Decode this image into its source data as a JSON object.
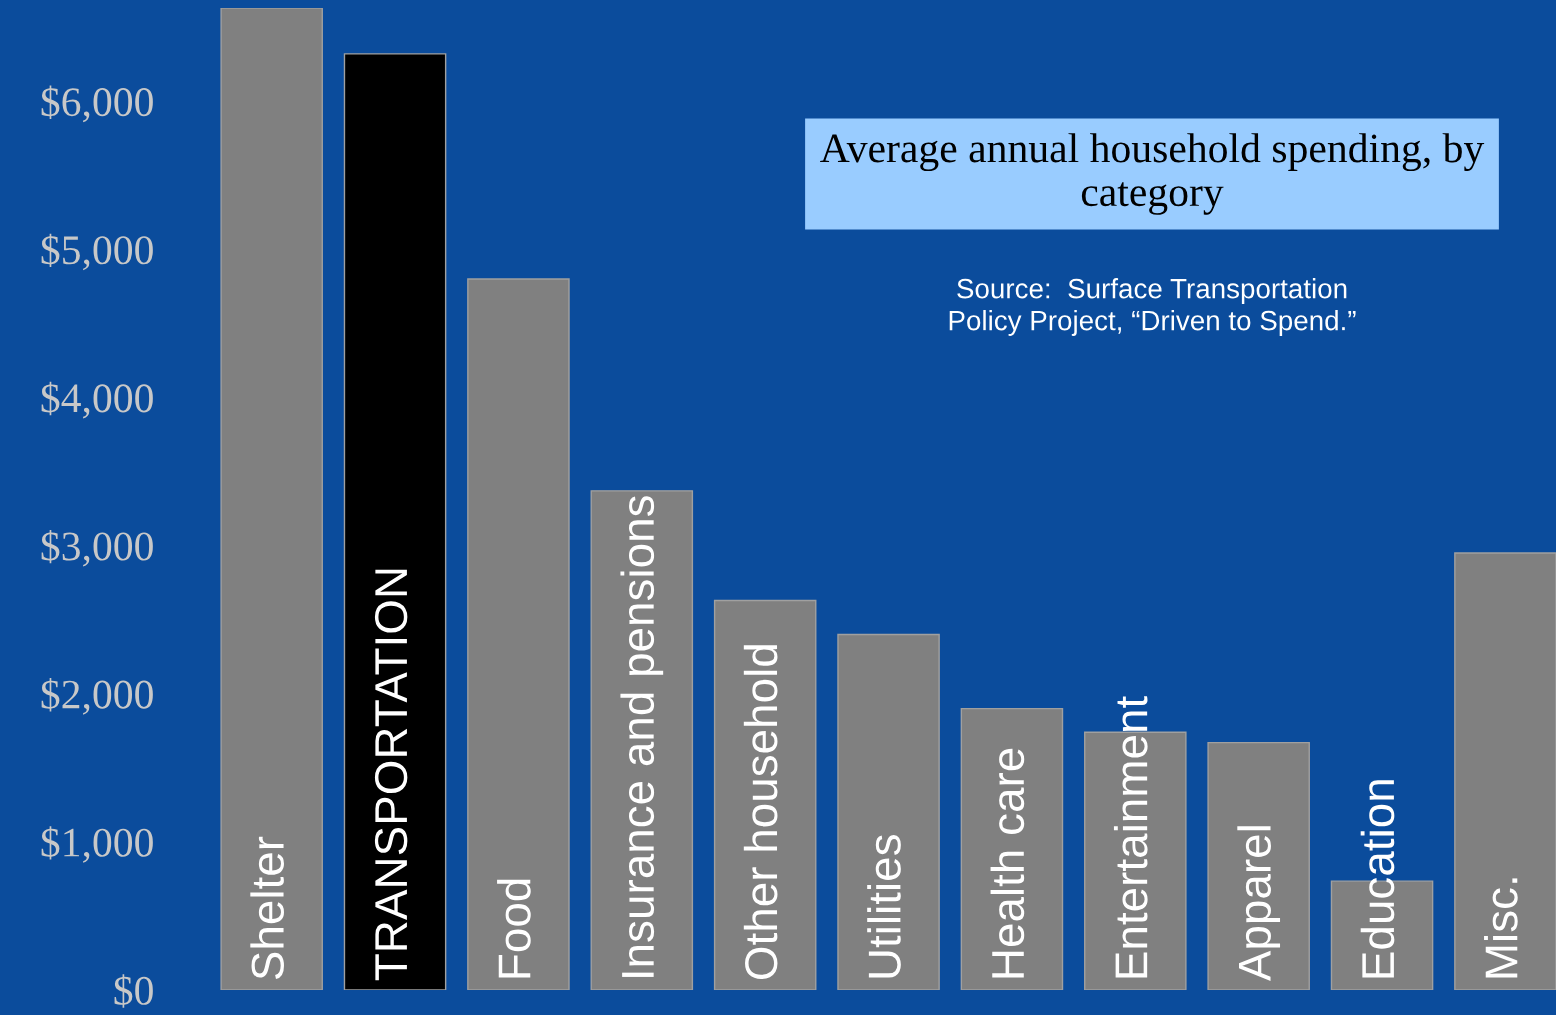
{
  "chart_data": {
    "type": "bar",
    "title": "Average annual household spending, by category",
    "categories": [
      "Shelter",
      "TRANSPORTATION",
      "Food",
      "Insurance and pensions",
      "Other household",
      "Utilities",
      "Health care",
      "Entertainment",
      "Apparel",
      "Education",
      "Misc."
    ],
    "values": [
      6630,
      6320,
      4800,
      3370,
      2630,
      2400,
      1900,
      1740,
      1670,
      735,
      2950
    ],
    "colors": [
      "#808080",
      "#000000",
      "#808080",
      "#808080",
      "#808080",
      "#808080",
      "#808080",
      "#808080",
      "#808080",
      "#808080",
      "#808080"
    ],
    "ylim": [
      0,
      6630
    ],
    "yticks": [
      {
        "value": 0,
        "label": "$0"
      },
      {
        "value": 1000,
        "label": "$1,000"
      },
      {
        "value": 2000,
        "label": "$2,000"
      },
      {
        "value": 3000,
        "label": "$3,000"
      },
      {
        "value": 4000,
        "label": "$4,000"
      },
      {
        "value": 5000,
        "label": "$5,000"
      },
      {
        "value": 6000,
        "label": "$6,000"
      }
    ],
    "annotations": [
      "Source:  Surface Transportation\nPolicy Project, “Driven to Spend.”"
    ],
    "grid": false,
    "legend": false
  }
}
